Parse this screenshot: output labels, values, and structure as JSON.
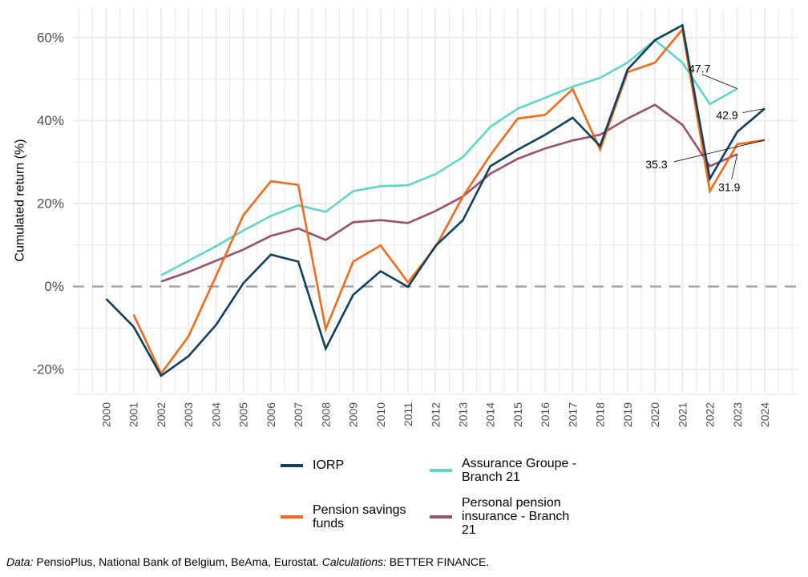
{
  "chart_data": {
    "type": "line",
    "title": "",
    "xlabel": "",
    "ylabel": "Cumulated return  (%)",
    "x": [
      2000,
      2001,
      2002,
      2003,
      2004,
      2005,
      2006,
      2007,
      2008,
      2009,
      2010,
      2011,
      2012,
      2013,
      2014,
      2015,
      2016,
      2017,
      2018,
      2019,
      2020,
      2021,
      2022,
      2023,
      2024
    ],
    "x_tick_labels": [
      "2000",
      "2001",
      "2002",
      "2003",
      "2004",
      "2005",
      "2006",
      "2007",
      "2008",
      "2009",
      "2010",
      "2011",
      "2012",
      "2013",
      "2014",
      "2015",
      "2016",
      "2017",
      "2018",
      "2019",
      "2020",
      "2021",
      "2022",
      "2023",
      "2024"
    ],
    "ylim": [
      -25,
      67
    ],
    "xlim": [
      1998.9,
      2025.2
    ],
    "y_ticks": [
      -20,
      0,
      20,
      40,
      60
    ],
    "y_tick_labels": [
      "-20%",
      "0%",
      "20%",
      "40%",
      "60%"
    ],
    "grid": true,
    "reference_line": {
      "y": 0,
      "style": "dashed",
      "color": "#a6a6a6"
    },
    "legend_position": "bottom",
    "series": [
      {
        "name": "IORP",
        "color": "#0d3f5f",
        "values": [
          -3.0,
          -9.7,
          -21.5,
          -16.8,
          -9.3,
          0.8,
          7.7,
          6.0,
          -15.0,
          -2.0,
          3.7,
          -0.1,
          9.8,
          16.0,
          29.0,
          33.0,
          36.6,
          40.7,
          33.9,
          52.3,
          59.4,
          63.0,
          26.0,
          37.3,
          42.9
        ]
      },
      {
        "name": "Assurance Groupe - Branch 21",
        "color": "#5ed5c6",
        "values": [
          null,
          null,
          2.7,
          6.2,
          9.7,
          13.5,
          17.0,
          19.6,
          18.0,
          23.0,
          24.2,
          24.4,
          27.1,
          31.2,
          38.5,
          42.9,
          45.5,
          48.2,
          50.3,
          54.0,
          59.4,
          54.0,
          44.0,
          47.7,
          null
        ]
      },
      {
        "name": "Pension savings funds",
        "color": "#f26a1b",
        "values": [
          null,
          -6.8,
          -21.0,
          -12.0,
          2.5,
          17.2,
          25.4,
          24.5,
          -10.3,
          6.0,
          9.9,
          1.0,
          9.5,
          21.7,
          31.7,
          40.5,
          41.4,
          47.6,
          33.0,
          51.7,
          54.0,
          62.0,
          23.0,
          34.3,
          35.3
        ]
      },
      {
        "name": "Personal pension insurance - Branch 21",
        "color": "#9b4f6c",
        "values": [
          null,
          null,
          1.2,
          3.5,
          6.2,
          8.9,
          12.2,
          14.0,
          11.2,
          15.5,
          16.0,
          15.3,
          18.2,
          21.7,
          27.2,
          30.8,
          33.3,
          35.2,
          36.6,
          40.5,
          43.8,
          39.0,
          29.0,
          31.9,
          null
        ]
      }
    ],
    "annotations": [
      {
        "text": "47.7",
        "series": "Assurance Groupe - Branch 21",
        "x": 2023,
        "y": 47.7
      },
      {
        "text": "42.9",
        "series": "IORP",
        "x": 2024,
        "y": 42.9
      },
      {
        "text": "35.3",
        "series": "Pension savings funds",
        "x": 2024,
        "y": 35.3
      },
      {
        "text": "31.9",
        "series": "Personal pension insurance - Branch 21",
        "x": 2023,
        "y": 31.9
      }
    ]
  },
  "legend": {
    "items": [
      {
        "label": "IORP",
        "color": "#0d3f5f"
      },
      {
        "label": "Assurance Groupe - Branch 21",
        "color": "#5ed5c6"
      },
      {
        "label": "Pension savings funds",
        "color": "#f26a1b"
      },
      {
        "label": "Personal pension insurance - Branch 21",
        "color": "#9b4f6c"
      }
    ],
    "wrapped": {
      "item0": [
        "IORP"
      ],
      "item1": [
        "Assurance Groupe -",
        "Branch 21"
      ],
      "item2": [
        "Pension savings",
        "funds"
      ],
      "item3": [
        "Personal pension",
        "insurance - Branch",
        "21"
      ]
    }
  },
  "caption": {
    "data_label": "Data:",
    "data_text": " PensioPlus, National Bank of Belgium, BeAma, Eurostat. ",
    "calc_label": "Calculations:",
    "calc_text": " BETTER FINANCE."
  }
}
